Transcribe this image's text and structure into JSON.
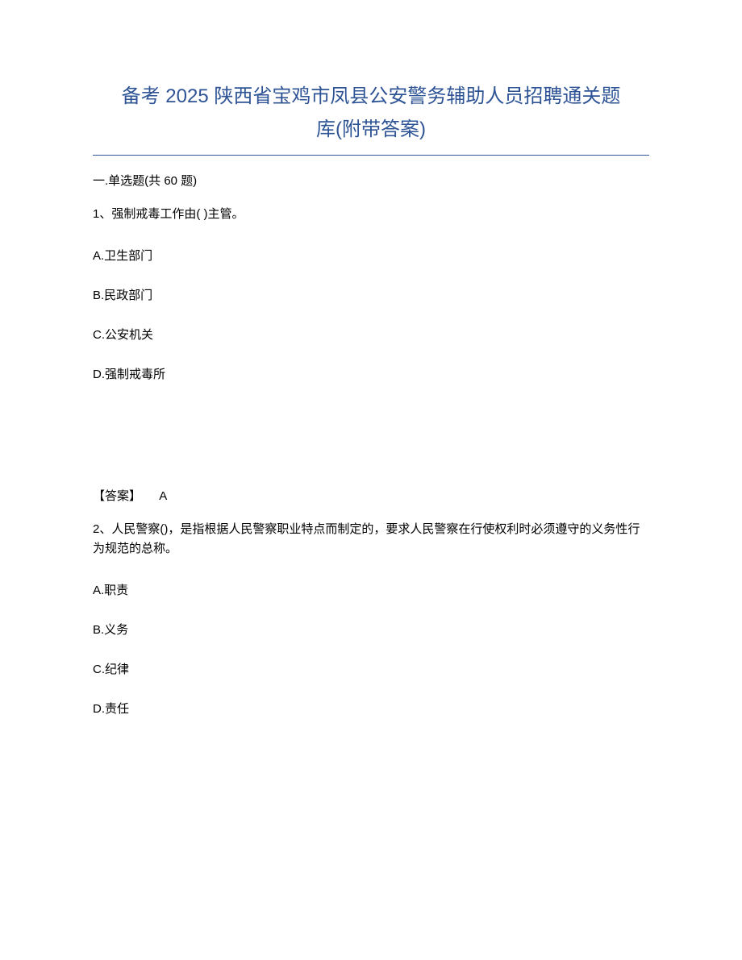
{
  "document": {
    "title_line1": "备考 2025 陕西省宝鸡市凤县公安警务辅助人员招聘通关题",
    "title_line2": "库(附带答案)",
    "title_color": "#2e5496",
    "title_fontsize": 24,
    "body_fontsize": 15,
    "text_color": "#000000",
    "background_color": "#ffffff",
    "section_header": "一.单选题(共 60 题)",
    "questions": [
      {
        "stem": "1、强制戒毒工作由(    )主管。",
        "options": {
          "A": "A.卫生部门",
          "B": "B.民政部门",
          "C": "C.公安机关",
          "D": "D.强制戒毒所"
        },
        "answer_label": "【答案】",
        "answer_value": "A"
      },
      {
        "stem": "2、人民警察()，是指根据人民警察职业特点而制定的，要求人民警察在行使权利时必须遵守的义务性行为规范的总称。",
        "options": {
          "A": "A.职责",
          "B": "B.义务",
          "C": "C.纪律",
          "D": "D.责任"
        }
      }
    ]
  }
}
